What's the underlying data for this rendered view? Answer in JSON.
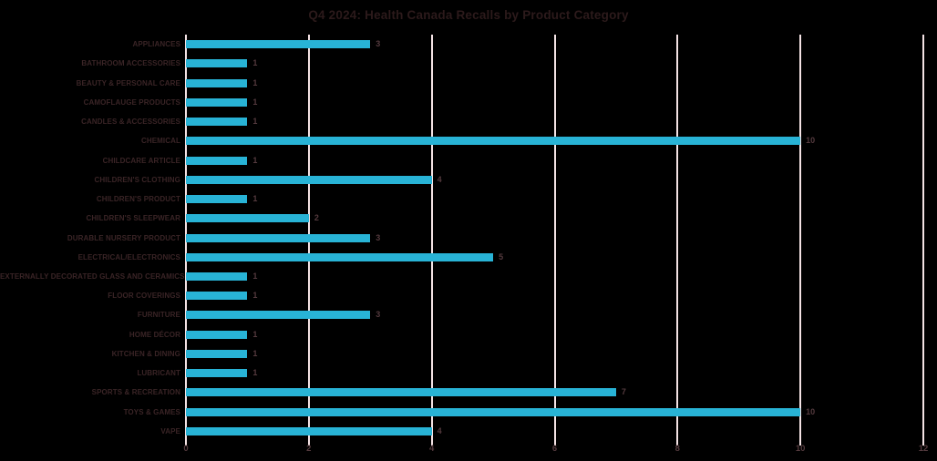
{
  "title": "Q4 2024: Health Canada Recalls by Product Category",
  "colors": {
    "background": "#000000",
    "bar": "#28b3d6",
    "gridline": "#f3e2e4",
    "title_text": "#2c1a1b",
    "category_text": "#3a2426",
    "value_text": "#543a3e",
    "axis_text": "#543a3e"
  },
  "chart_data": {
    "type": "bar",
    "orientation": "horizontal",
    "title": "Q4 2024: Health Canada Recalls by Product Category",
    "xlabel": "",
    "ylabel": "",
    "categories": [
      "APPLIANCES",
      "BATHROOM ACCESSORIES",
      "BEAUTY & PERSONAL CARE",
      "CAMOFLAUGE PRODUCTS",
      "CANDLES & ACCESSORIES",
      "CHEMICAL",
      "CHILDCARE ARTICLE",
      "CHILDREN'S CLOTHING",
      "CHILDREN'S PRODUCT",
      "CHILDREN'S SLEEPWEAR",
      "DURABLE NURSERY PRODUCT",
      "ELECTRICAL/ELECTRONICS",
      "EXTERNALLY DECORATED GLASS AND CERAMICS",
      "FLOOR COVERINGS",
      "FURNITURE",
      "HOME DÉCOR",
      "KITCHEN & DINING",
      "LUBRICANT",
      "SPORTS & RECREATION",
      "TOYS & GAMES",
      "VAPE"
    ],
    "values": [
      3,
      1,
      1,
      1,
      1,
      10,
      1,
      4,
      1,
      2,
      3,
      5,
      1,
      1,
      3,
      1,
      1,
      1,
      7,
      10,
      4
    ],
    "data_labels": [
      "3",
      "1",
      "1",
      "1",
      "1",
      "10",
      "1",
      "4",
      "1",
      "2",
      "3",
      "5",
      "1",
      "1",
      "3",
      "1",
      "1",
      "1",
      "7",
      "10",
      "4"
    ],
    "xlim": [
      0,
      12
    ],
    "xticks": [
      0,
      2,
      4,
      6,
      8,
      10,
      12
    ],
    "xtick_labels": [
      "0",
      "2",
      "4",
      "6",
      "8",
      "10",
      "12"
    ],
    "grid": true,
    "legend": "none"
  }
}
